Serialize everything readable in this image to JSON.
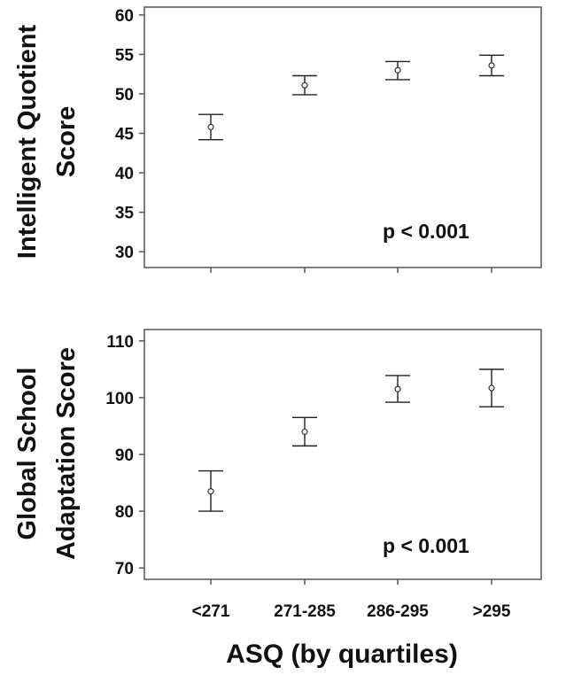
{
  "chart_data": [
    {
      "type": "scatter",
      "style": "mean with error bars",
      "categories": [
        "<271",
        "271-285",
        "286-295",
        ">295"
      ],
      "ylabel_lines": [
        "Intelligent Quotient",
        "Score"
      ],
      "ylim": [
        28,
        61
      ],
      "yticks": [
        30,
        35,
        40,
        45,
        50,
        55,
        60
      ],
      "series": [
        {
          "means": [
            45.8,
            51.1,
            53.0,
            53.6
          ],
          "lower": [
            44.2,
            49.9,
            51.8,
            52.3
          ],
          "upper": [
            47.4,
            52.3,
            54.1,
            54.9
          ]
        }
      ],
      "annotation": "p < 0.001",
      "grid": false
    },
    {
      "type": "scatter",
      "style": "mean with error bars",
      "categories": [
        "<271",
        "271-285",
        "286-295",
        ">295"
      ],
      "ylabel_lines": [
        "Global School",
        "Adaptation  Score"
      ],
      "ylim": [
        68,
        112
      ],
      "yticks": [
        70,
        80,
        90,
        100,
        110
      ],
      "series": [
        {
          "means": [
            83.5,
            94.0,
            101.5,
            101.7
          ],
          "lower": [
            80.0,
            91.5,
            99.2,
            98.4
          ],
          "upper": [
            87.1,
            96.5,
            103.9,
            105.0
          ]
        }
      ],
      "annotation": "p < 0.001",
      "grid": false
    }
  ],
  "xlabel": "ASQ  (by quartiles)"
}
